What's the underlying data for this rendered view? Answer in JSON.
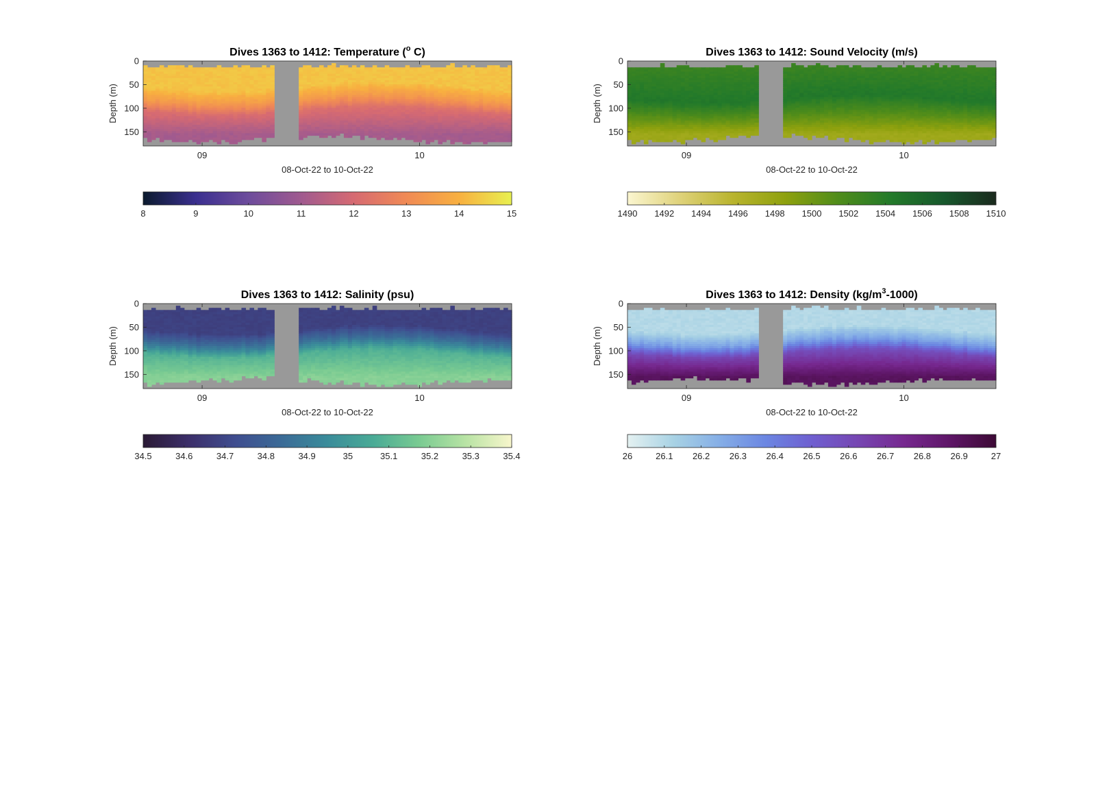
{
  "chart_data": [
    {
      "type": "heatmap",
      "title_main": "Dives 1363 to 1412: Temperature (",
      "title_sup": "o",
      "title_end": " C)",
      "xlabel": "08-Oct-22 to 10-Oct-22",
      "ylabel": "Depth (m)",
      "x_ticks": [
        "09",
        "10"
      ],
      "x_tick_fracs": [
        0.16,
        0.75
      ],
      "y_ticks": [
        "0",
        "50",
        "100",
        "150"
      ],
      "ylim": [
        0,
        180
      ],
      "gap": [
        0.36,
        0.42
      ],
      "colorbar": {
        "min": 8,
        "max": 15,
        "ticks": [
          "8",
          "9",
          "10",
          "11",
          "12",
          "13",
          "14",
          "15"
        ],
        "colors": [
          "#0b1a2e",
          "#3a2f8f",
          "#6d4c9c",
          "#a05a8f",
          "#d66a72",
          "#f08a55",
          "#f8b040",
          "#e8f050"
        ]
      },
      "profile": {
        "top": 14.3,
        "mid": 12.7,
        "deep": 11.1
      },
      "thermocline_depth_m": 80,
      "deep_depth_m": 145
    },
    {
      "type": "heatmap",
      "title_main": "Dives 1363 to 1412: Sound Velocity (m/s)",
      "title_sup": "",
      "title_end": "",
      "xlabel": "08-Oct-22 to 10-Oct-22",
      "ylabel": "Depth (m)",
      "x_ticks": [
        "09",
        "10"
      ],
      "x_tick_fracs": [
        0.16,
        0.75
      ],
      "y_ticks": [
        "0",
        "50",
        "100",
        "150"
      ],
      "ylim": [
        0,
        180
      ],
      "gap": [
        0.36,
        0.42
      ],
      "colorbar": {
        "min": 1490,
        "max": 1510,
        "ticks": [
          "1490",
          "1492",
          "1494",
          "1496",
          "1498",
          "1500",
          "1502",
          "1504",
          "1506",
          "1508",
          "1510"
        ],
        "colors": [
          "#fbf6d0",
          "#dfd27a",
          "#b9b42e",
          "#8ea10e",
          "#4f8c1a",
          "#237a2a",
          "#17582c",
          "#1b2a1e"
        ]
      },
      "profile": {
        "top": 1502.5,
        "mid": 1504.5,
        "deep": 1497.5
      },
      "thermocline_depth_m": 80,
      "deep_depth_m": 145
    },
    {
      "type": "heatmap",
      "title_main": "Dives 1363 to 1412: Salinity (psu)",
      "title_sup": "",
      "title_end": "",
      "xlabel": "08-Oct-22 to 10-Oct-22",
      "ylabel": "Depth (m)",
      "x_ticks": [
        "09",
        "10"
      ],
      "x_tick_fracs": [
        0.16,
        0.75
      ],
      "y_ticks": [
        "0",
        "50",
        "100",
        "150"
      ],
      "ylim": [
        0,
        180
      ],
      "gap": [
        0.36,
        0.42
      ],
      "colorbar": {
        "min": 34.5,
        "max": 35.4,
        "ticks": [
          "34.5",
          "34.6",
          "34.7",
          "34.8",
          "34.9",
          "35",
          "35.1",
          "35.2",
          "35.3",
          "35.4"
        ],
        "colors": [
          "#2a1a35",
          "#3c2f6a",
          "#3f4d8f",
          "#3b6b97",
          "#3a8c9a",
          "#4aab96",
          "#7acb92",
          "#b8e3a4",
          "#f8f6cc"
        ]
      },
      "profile": {
        "top": 34.68,
        "mid": 35.02,
        "deep": 35.2
      },
      "thermocline_depth_m": 80,
      "deep_depth_m": 145
    },
    {
      "type": "heatmap",
      "title_main": "Dives 1363 to 1412: Density (kg/m",
      "title_sup": "3",
      "title_end": "-1000)",
      "xlabel": "08-Oct-22 to 10-Oct-22",
      "ylabel": "Depth (m)",
      "x_ticks": [
        "09",
        "10"
      ],
      "x_tick_fracs": [
        0.16,
        0.75
      ],
      "y_ticks": [
        "0",
        "50",
        "100",
        "150"
      ],
      "ylim": [
        0,
        180
      ],
      "gap": [
        0.36,
        0.42
      ],
      "colorbar": {
        "min": 26,
        "max": 27,
        "ticks": [
          "26",
          "26.1",
          "26.2",
          "26.3",
          "26.4",
          "26.5",
          "26.6",
          "26.7",
          "26.8",
          "26.9",
          "27"
        ],
        "colors": [
          "#e4f1f1",
          "#a8d2e4",
          "#85aee6",
          "#6b86e2",
          "#6f5fd0",
          "#7646b2",
          "#76288f",
          "#5e1667",
          "#3d0a35"
        ]
      },
      "profile": {
        "top": 26.1,
        "mid": 26.45,
        "deep": 26.9
      },
      "thermocline_depth_m": 80,
      "deep_depth_m": 145
    }
  ]
}
